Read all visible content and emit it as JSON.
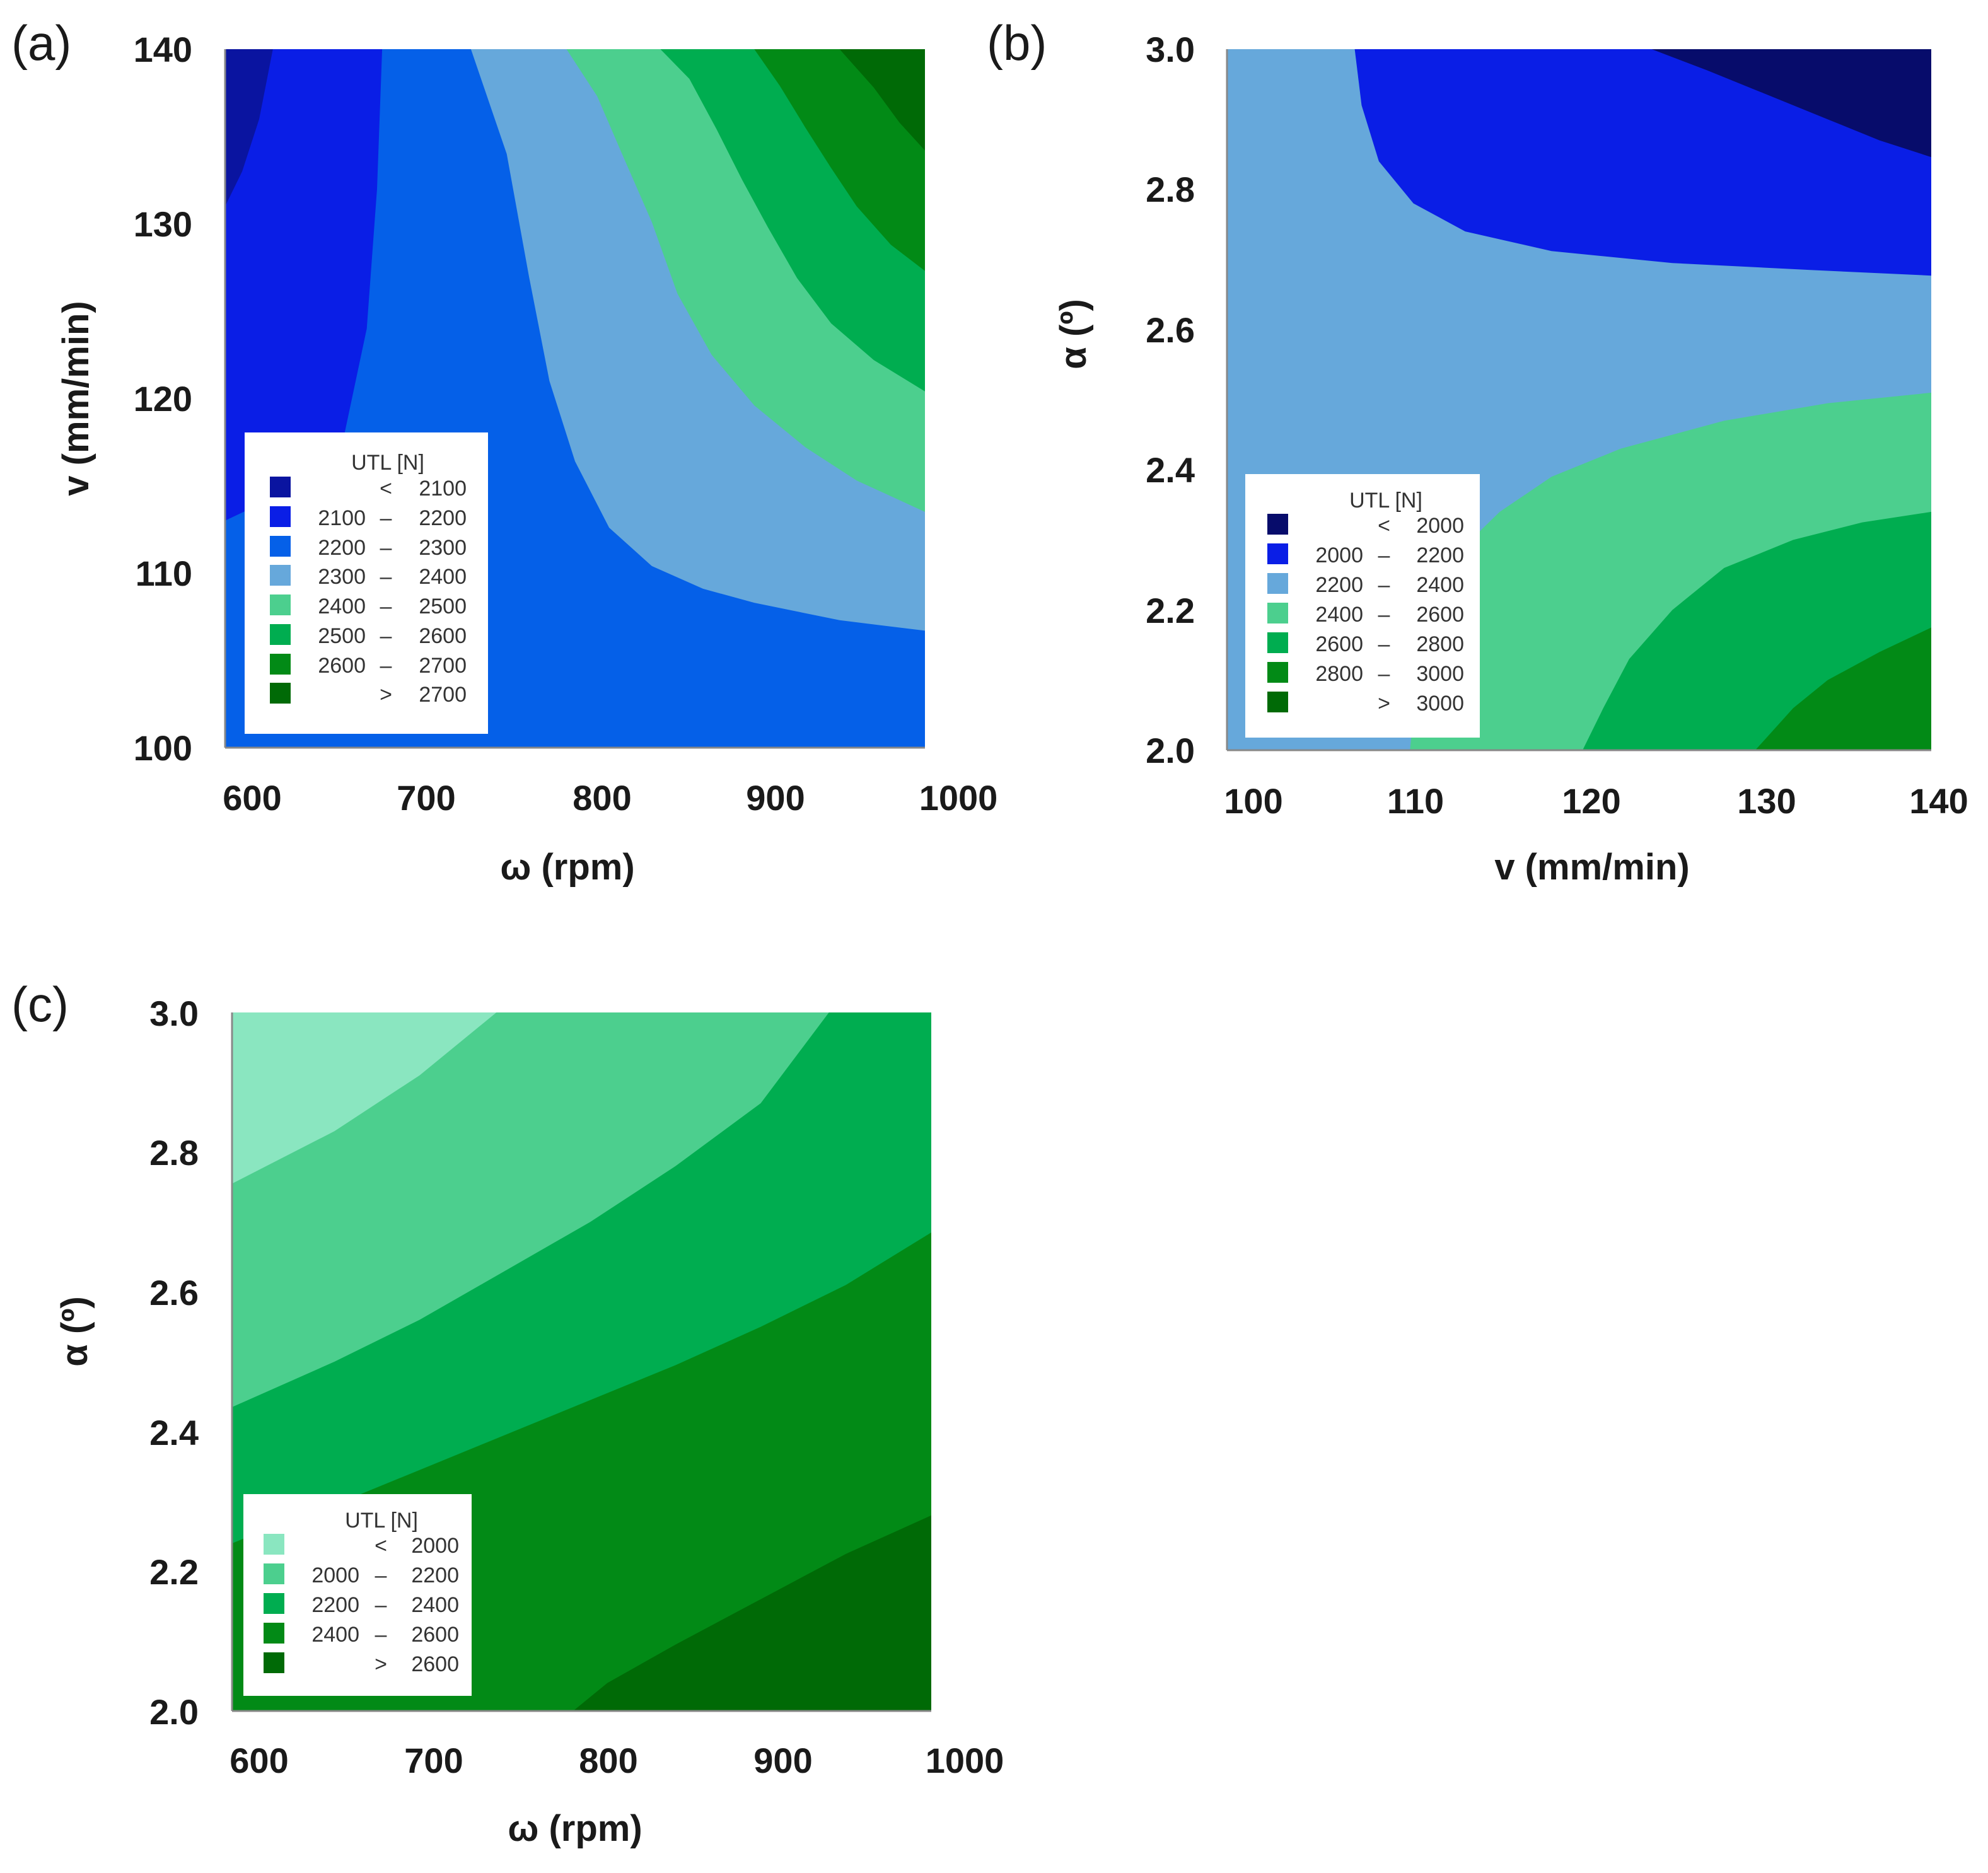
{
  "chart_data": [
    {
      "id": "a",
      "type": "heatmap",
      "subtype": "filled-contour",
      "panel_label": "(a)",
      "xlabel": "ω (rpm)",
      "ylabel": "v (mm/min)",
      "xlim": [
        590,
        1000
      ],
      "ylim": [
        100,
        140
      ],
      "x_ticks": [
        "600",
        "700",
        "800",
        "900",
        "1000"
      ],
      "y_ticks": [
        "100",
        "110",
        "120",
        "130",
        "140"
      ],
      "x_tick_values": [
        600,
        700,
        800,
        900,
        1000
      ],
      "y_tick_values": [
        100,
        110,
        120,
        130,
        140
      ],
      "legend": {
        "title": "UTL [N]",
        "position": "lower-left",
        "entries": [
          {
            "lo": "",
            "sep": "<",
            "hi": "2100",
            "color": "#0a14a0"
          },
          {
            "lo": "2100",
            "sep": "–",
            "hi": "2200",
            "color": "#0a1ee6"
          },
          {
            "lo": "2200",
            "sep": "–",
            "hi": "2300",
            "color": "#0560e8"
          },
          {
            "lo": "2300",
            "sep": "–",
            "hi": "2400",
            "color": "#66a8db"
          },
          {
            "lo": "2400",
            "sep": "–",
            "hi": "2500",
            "color": "#4ccf8e"
          },
          {
            "lo": "2500",
            "sep": "–",
            "hi": "2600",
            "color": "#00ad50"
          },
          {
            "lo": "2600",
            "sep": "–",
            "hi": "2700",
            "color": "#028a16"
          },
          {
            "lo": "",
            "sep": ">",
            "hi": "2700",
            "color": "#006a06"
          }
        ]
      },
      "background_color": "#0560e8",
      "regions": [
        {
          "name": "2100-2200",
          "color": "#0a1ee6",
          "points": [
            [
              590,
              140
            ],
            [
              682,
              140
            ],
            [
              679,
              132
            ],
            [
              673,
              124
            ],
            [
              660,
              118
            ],
            [
              633,
              115
            ],
            [
              590,
              113
            ]
          ]
        },
        {
          "name": "<2100",
          "color": "#0a14a0",
          "points": [
            [
              590,
              140
            ],
            [
              618,
              140
            ],
            [
              610,
              136
            ],
            [
              600,
              133
            ],
            [
              590,
              131
            ]
          ]
        },
        {
          "name": "2300-2400",
          "color": "#66a8db",
          "points": [
            [
              734,
              140
            ],
            [
              1000,
              140
            ],
            [
              1000,
              106.7
            ],
            [
              950,
              107.3
            ],
            [
              900,
              108.3
            ],
            [
              870,
              109.1
            ],
            [
              840,
              110.4
            ],
            [
              815,
              112.6
            ],
            [
              795,
              116.4
            ],
            [
              780,
              121
            ],
            [
              768,
              127
            ],
            [
              755,
              134
            ]
          ]
        },
        {
          "name": "2400-2500",
          "color": "#4ccf8e",
          "points": [
            [
              790,
              140
            ],
            [
              1000,
              140
            ],
            [
              1000,
              113.5
            ],
            [
              960,
              115.3
            ],
            [
              930,
              117.2
            ],
            [
              900,
              119.6
            ],
            [
              875,
              122.5
            ],
            [
              855,
              126
            ],
            [
              840,
              130.1
            ],
            [
              823,
              133.9
            ],
            [
              808,
              137.3
            ]
          ]
        },
        {
          "name": "2500-2600",
          "color": "#00ad50",
          "points": [
            [
              845,
              140
            ],
            [
              1000,
              140
            ],
            [
              1000,
              120.4
            ],
            [
              970,
              122.2
            ],
            [
              945,
              124.3
            ],
            [
              925,
              126.9
            ],
            [
              908,
              129.8
            ],
            [
              893,
              132.5
            ],
            [
              878,
              135.4
            ],
            [
              862,
              138.3
            ]
          ]
        },
        {
          "name": "2600-2700",
          "color": "#028a16",
          "points": [
            [
              900,
              140
            ],
            [
              1000,
              140
            ],
            [
              1000,
              127.3
            ],
            [
              980,
              128.8
            ],
            [
              960,
              131
            ],
            [
              945,
              133.2
            ],
            [
              930,
              135.5
            ],
            [
              915,
              137.9
            ]
          ]
        },
        {
          "name": ">2700",
          "color": "#006a06",
          "points": [
            [
              950,
              140
            ],
            [
              1000,
              140
            ],
            [
              1000,
              134.2
            ],
            [
              985,
              135.8
            ],
            [
              970,
              137.8
            ]
          ]
        }
      ]
    },
    {
      "id": "b",
      "type": "heatmap",
      "subtype": "filled-contour",
      "panel_label": "(b)",
      "xlabel": "v (mm/min)",
      "ylabel": "α (º)",
      "xlim": [
        99.2,
        140
      ],
      "ylim": [
        2.0,
        3.0
      ],
      "x_ticks": [
        "100",
        "110",
        "120",
        "130",
        "140"
      ],
      "y_ticks": [
        "2.0",
        "2.2",
        "2.4",
        "2.6",
        "2.8",
        "3.0"
      ],
      "x_tick_values": [
        100,
        110,
        120,
        130,
        140
      ],
      "y_tick_values": [
        2.0,
        2.2,
        2.4,
        2.6,
        2.8,
        3.0
      ],
      "legend": {
        "title": "UTL [N]",
        "position": "lower-left",
        "entries": [
          {
            "lo": "",
            "sep": "<",
            "hi": "2000",
            "color": "#070c6b"
          },
          {
            "lo": "2000",
            "sep": "–",
            "hi": "2200",
            "color": "#0a1ee6"
          },
          {
            "lo": "2200",
            "sep": "–",
            "hi": "2400",
            "color": "#66a8db"
          },
          {
            "lo": "2400",
            "sep": "–",
            "hi": "2600",
            "color": "#4ccf8e"
          },
          {
            "lo": "2600",
            "sep": "–",
            "hi": "2800",
            "color": "#00ad50"
          },
          {
            "lo": "2800",
            "sep": "–",
            "hi": "3000",
            "color": "#028a16"
          },
          {
            "lo": "",
            "sep": ">",
            "hi": "3000",
            "color": "#006a06"
          }
        ]
      },
      "background_color": "#66a8db",
      "regions": [
        {
          "name": "2000-2200",
          "color": "#0a1ee6",
          "points": [
            [
              106.6,
              3.0
            ],
            [
              140,
              3.0
            ],
            [
              140,
              2.677
            ],
            [
              133,
              2.685
            ],
            [
              125,
              2.695
            ],
            [
              118,
              2.712
            ],
            [
              113,
              2.74
            ],
            [
              110,
              2.78
            ],
            [
              108,
              2.84
            ],
            [
              107,
              2.92
            ]
          ]
        },
        {
          "name": "<2000",
          "color": "#070c6b",
          "points": [
            [
              123.8,
              3.0
            ],
            [
              140,
              3.0
            ],
            [
              140,
              2.846
            ],
            [
              137,
              2.87
            ],
            [
              134,
              2.9
            ],
            [
              130,
              2.94
            ],
            [
              127,
              2.97
            ]
          ]
        },
        {
          "name": "2400-2600",
          "color": "#4ccf8e",
          "points": [
            [
              109.8,
              2.0
            ],
            [
              140,
              2.0
            ],
            [
              140,
              2.51
            ],
            [
              134,
              2.495
            ],
            [
              128,
              2.47
            ],
            [
              122,
              2.43
            ],
            [
              118,
              2.39
            ],
            [
              115,
              2.34
            ],
            [
              112.5,
              2.28
            ],
            [
              111,
              2.2
            ],
            [
              110.2,
              2.1
            ]
          ]
        },
        {
          "name": "2600-2800",
          "color": "#00ad50",
          "points": [
            [
              119.8,
              2.0
            ],
            [
              140,
              2.0
            ],
            [
              140,
              2.34
            ],
            [
              136,
              2.325
            ],
            [
              132,
              2.3
            ],
            [
              128,
              2.26
            ],
            [
              125,
              2.2
            ],
            [
              122.5,
              2.13
            ],
            [
              121,
              2.06
            ]
          ]
        },
        {
          "name": "2800-3000",
          "color": "#028a16",
          "points": [
            [
              129.8,
              2.0
            ],
            [
              140,
              2.0
            ],
            [
              140,
              2.175
            ],
            [
              137,
              2.14
            ],
            [
              134,
              2.1
            ],
            [
              132,
              2.06
            ]
          ]
        }
      ]
    },
    {
      "id": "c",
      "type": "heatmap",
      "subtype": "filled-contour",
      "panel_label": "(c)",
      "xlabel": "ω (rpm)",
      "ylabel": "α (º)",
      "xlim": [
        590,
        1000
      ],
      "ylim": [
        2.0,
        3.0
      ],
      "x_ticks": [
        "600",
        "700",
        "800",
        "900",
        "1000"
      ],
      "y_ticks": [
        "2.0",
        "2.2",
        "2.4",
        "2.6",
        "2.8",
        "3.0"
      ],
      "x_tick_values": [
        600,
        700,
        800,
        900,
        1000
      ],
      "y_tick_values": [
        2.0,
        2.2,
        2.4,
        2.6,
        2.8,
        3.0
      ],
      "legend": {
        "title": "UTL [N]",
        "position": "lower-left",
        "entries": [
          {
            "lo": "",
            "sep": "<",
            "hi": "2000",
            "color": "#8ae6c0"
          },
          {
            "lo": "2000",
            "sep": "–",
            "hi": "2200",
            "color": "#4ccf8e"
          },
          {
            "lo": "2200",
            "sep": "–",
            "hi": "2400",
            "color": "#00ad50"
          },
          {
            "lo": "2400",
            "sep": "–",
            "hi": "2600",
            "color": "#028a16"
          },
          {
            "lo": "",
            "sep": ">",
            "hi": "2600",
            "color": "#006a06"
          }
        ]
      },
      "background_color": "#8ae6c0",
      "regions": [
        {
          "name": "2000-2200",
          "color": "#4ccf8e",
          "points": [
            [
              745,
              3.0
            ],
            [
              1000,
              3.0
            ],
            [
              1000,
              2.0
            ],
            [
              590,
              2.0
            ],
            [
              590,
              2.755
            ],
            [
              650,
              2.83
            ],
            [
              700,
              2.91
            ]
          ]
        },
        {
          "name": "2200-2400",
          "color": "#00ad50",
          "points": [
            [
              940,
              3.0
            ],
            [
              1000,
              3.0
            ],
            [
              1000,
              2.0
            ],
            [
              590,
              2.0
            ],
            [
              590,
              2.435
            ],
            [
              650,
              2.5
            ],
            [
              700,
              2.56
            ],
            [
              750,
              2.63
            ],
            [
              800,
              2.7
            ],
            [
              850,
              2.78
            ],
            [
              900,
              2.87
            ]
          ]
        },
        {
          "name": "2400-2600",
          "color": "#028a16",
          "points": [
            [
              590,
              2.0
            ],
            [
              1000,
              2.0
            ],
            [
              1000,
              2.685
            ],
            [
              950,
              2.61
            ],
            [
              900,
              2.55
            ],
            [
              850,
              2.495
            ],
            [
              800,
              2.445
            ],
            [
              750,
              2.395
            ],
            [
              700,
              2.345
            ],
            [
              650,
              2.295
            ],
            [
              600,
              2.25
            ],
            [
              590,
              2.24
            ]
          ]
        },
        {
          "name": ">2600",
          "color": "#006a06",
          "points": [
            [
              790,
              2.0
            ],
            [
              1000,
              2.0
            ],
            [
              1000,
              2.28
            ],
            [
              950,
              2.225
            ],
            [
              900,
              2.16
            ],
            [
              850,
              2.095
            ],
            [
              810,
              2.04
            ]
          ]
        }
      ]
    }
  ]
}
